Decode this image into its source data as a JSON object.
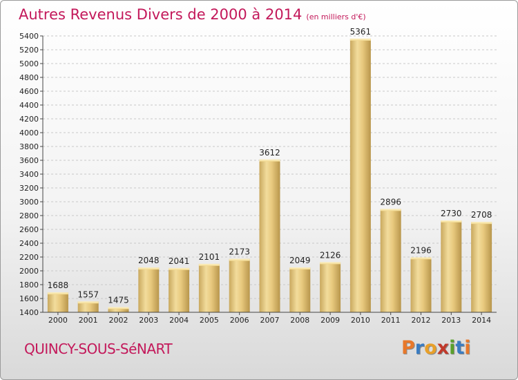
{
  "header": {
    "title": "Autres Revenus Divers de 2000 à 2014",
    "subtitle": "(en milliers d'€)"
  },
  "footer": {
    "commune": "QUINCY-SOUS-SéNART",
    "logo": [
      "P",
      "r",
      "o",
      "x",
      "i",
      "t",
      "i"
    ],
    "logo_colors": [
      "#e8782a",
      "#3a7cc2",
      "#e8a02a",
      "#c0392b",
      "#5aa02c",
      "#3a7cc2",
      "#e8782a"
    ]
  },
  "chart_data": {
    "type": "bar",
    "categories": [
      "2000",
      "2001",
      "2002",
      "2003",
      "2004",
      "2005",
      "2006",
      "2007",
      "2008",
      "2009",
      "2010",
      "2011",
      "2012",
      "2013",
      "2014"
    ],
    "values": [
      1688,
      1557,
      1475,
      2048,
      2041,
      2101,
      2173,
      3612,
      2049,
      2126,
      5361,
      2896,
      2196,
      2730,
      2708
    ],
    "title": "Autres Revenus Divers de 2000 à 2014",
    "subtitle": "(en milliers d'€)",
    "ylim": [
      1400,
      5400
    ],
    "yticks": [
      1400,
      1600,
      1800,
      2000,
      2200,
      2400,
      2600,
      2800,
      3000,
      3200,
      3400,
      3600,
      3800,
      4000,
      4200,
      4400,
      4600,
      4800,
      5000,
      5200,
      5400
    ],
    "grid": true,
    "bar_color": "#e3c275"
  }
}
